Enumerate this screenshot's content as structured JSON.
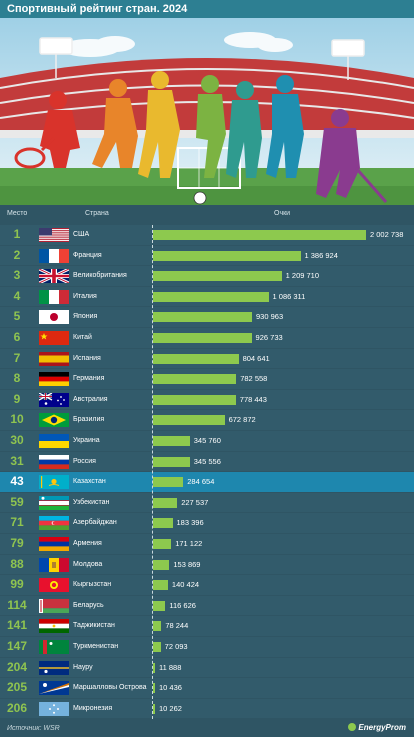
{
  "header": {
    "title": "Спортивный рейтинг стран. 2024"
  },
  "columns": {
    "place": "Место",
    "country": "Страна",
    "points": "Очки"
  },
  "colors": {
    "bar": "#8dc94e",
    "highlight_row": "#1e87ae",
    "row": "#325b6b",
    "header": "#2d7f92"
  },
  "chart_data": {
    "type": "bar",
    "orientation": "horizontal",
    "title": "Спортивный рейтинг стран. 2024",
    "xlabel": "Очки",
    "xlim": [
      0,
      2002738
    ],
    "highlight": "Казахстан",
    "rows": [
      {
        "place": "1",
        "country": "США",
        "value": 2002738,
        "value_label": "2 002 738",
        "flag": "us"
      },
      {
        "place": "2",
        "country": "Франция",
        "value": 1386924,
        "value_label": "1 386 924",
        "flag": "fr"
      },
      {
        "place": "3",
        "country": "Великобритания",
        "value": 1209710,
        "value_label": "1 209 710",
        "flag": "gb"
      },
      {
        "place": "4",
        "country": "Италия",
        "value": 1086311,
        "value_label": "1 086 311",
        "flag": "it"
      },
      {
        "place": "5",
        "country": "Япония",
        "value": 930963,
        "value_label": "930 963",
        "flag": "jp"
      },
      {
        "place": "6",
        "country": "Китай",
        "value": 926733,
        "value_label": "926 733",
        "flag": "cn"
      },
      {
        "place": "7",
        "country": "Испания",
        "value": 804641,
        "value_label": "804 641",
        "flag": "es"
      },
      {
        "place": "8",
        "country": "Германия",
        "value": 782558,
        "value_label": "782 558",
        "flag": "de"
      },
      {
        "place": "9",
        "country": "Австралия",
        "value": 778443,
        "value_label": "778 443",
        "flag": "au"
      },
      {
        "place": "10",
        "country": "Бразилия",
        "value": 672872,
        "value_label": "672 872",
        "flag": "br"
      },
      {
        "place": "30",
        "country": "Украина",
        "value": 345760,
        "value_label": "345 760",
        "flag": "ua"
      },
      {
        "place": "31",
        "country": "Россия",
        "value": 345556,
        "value_label": "345 556",
        "flag": "ru"
      },
      {
        "place": "43",
        "country": "Казахстан",
        "value": 284654,
        "value_label": "284 654",
        "flag": "kz"
      },
      {
        "place": "59",
        "country": "Узбекистан",
        "value": 227537,
        "value_label": "227 537",
        "flag": "uz"
      },
      {
        "place": "71",
        "country": "Азербайджан",
        "value": 183396,
        "value_label": "183 396",
        "flag": "az"
      },
      {
        "place": "79",
        "country": "Армения",
        "value": 171122,
        "value_label": "171 122",
        "flag": "am"
      },
      {
        "place": "88",
        "country": "Молдова",
        "value": 153869,
        "value_label": "153 869",
        "flag": "md"
      },
      {
        "place": "99",
        "country": "Кыргызстан",
        "value": 140424,
        "value_label": "140 424",
        "flag": "kg"
      },
      {
        "place": "114",
        "country": "Беларусь",
        "value": 116626,
        "value_label": "116 626",
        "flag": "by"
      },
      {
        "place": "141",
        "country": "Таджикистан",
        "value": 78244,
        "value_label": "78 244",
        "flag": "tj"
      },
      {
        "place": "147",
        "country": "Туркменистан",
        "value": 72093,
        "value_label": "72 093",
        "flag": "tm"
      },
      {
        "place": "204",
        "country": "Науру",
        "value": 11888,
        "value_label": "11 888",
        "flag": "nr"
      },
      {
        "place": "205",
        "country": "Маршалловы Острова",
        "value": 10436,
        "value_label": "10 436",
        "flag": "mh"
      },
      {
        "place": "206",
        "country": "Микронезия",
        "value": 10262,
        "value_label": "10 262",
        "flag": "fm"
      }
    ]
  },
  "footer": {
    "source": "Источник: WSR",
    "logo": "EnergyProm"
  }
}
